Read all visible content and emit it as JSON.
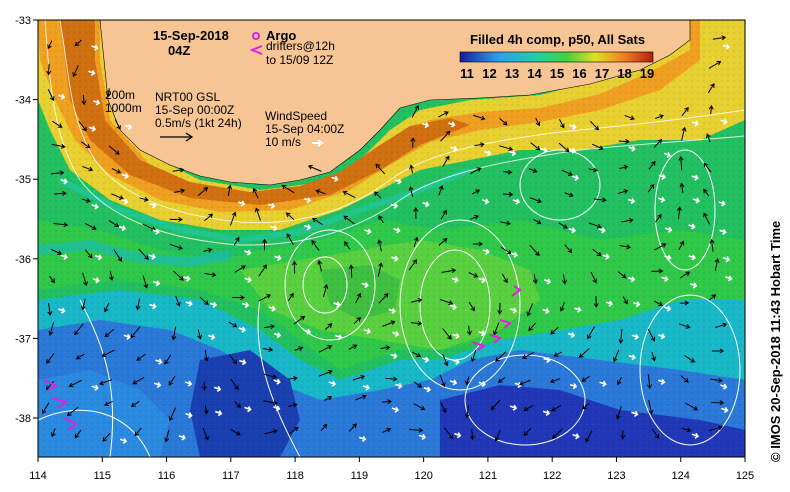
{
  "map": {
    "date": "15-Sep-2018",
    "time": "04Z",
    "legend_argo": "Argo",
    "legend_drifters_1": "drifters@12h",
    "legend_drifters_2": "to 15/09 12Z",
    "depth_200": "200m",
    "depth_1000": "1000m",
    "current_1": "NRT00 GSL",
    "current_2": "15-Sep 00:00Z",
    "current_3": "0.5m/s (1kt 24h)",
    "wind_1": "WindSpeed",
    "wind_2": "15-Sep 04:00Z",
    "wind_3": "10 m/s",
    "colorbar_title": "Filled 4h comp, p50, All Sats",
    "colorbar_ticks": [
      "11",
      "12",
      "13",
      "14",
      "15",
      "16",
      "17",
      "18",
      "19"
    ],
    "credit": "© IMOS 20-Sep-2018 11:43 Hobart Time",
    "lon_ticks": [
      "114",
      "115",
      "116",
      "117",
      "118",
      "119",
      "120",
      "121",
      "122",
      "123",
      "124",
      "125"
    ],
    "lat_ticks": [
      "-33",
      "-34",
      "-35",
      "-36",
      "-37",
      "-38"
    ],
    "colors": {
      "land": "#f7c594",
      "sst_cold": "#1a3fb0",
      "sst_mid": "#19b24a",
      "sst_warm": "#f0a020",
      "argo": "#e020e0",
      "drifter": "#e020e0"
    }
  }
}
